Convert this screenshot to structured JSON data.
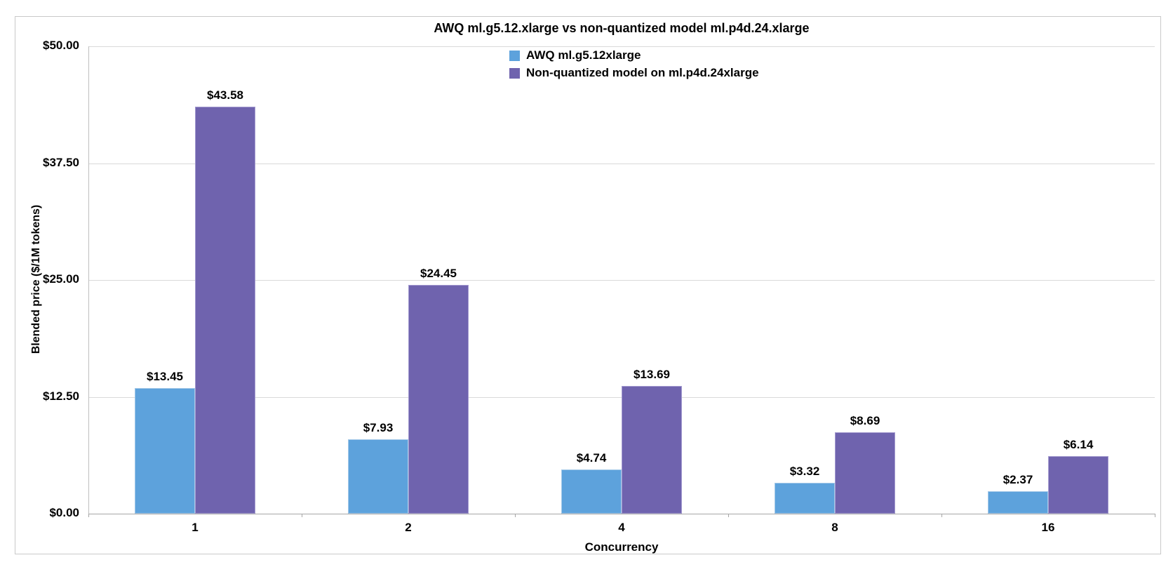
{
  "chart_data": {
    "type": "bar",
    "title": "AWQ ml.g5.12.xlarge vs non-quantized model ml.p4d.24.xlarge",
    "xlabel": "Concurrency",
    "ylabel": "Blended price ($/1M tokens)",
    "categories": [
      "1",
      "2",
      "4",
      "8",
      "16"
    ],
    "series": [
      {
        "name": "AWQ ml.g5.12xlarge",
        "color": "#5da2dc",
        "border_color": "#a4c9e8",
        "values": [
          13.45,
          7.93,
          4.74,
          3.32,
          2.37
        ],
        "labels": [
          "$13.45",
          "$7.93",
          "$4.74",
          "$3.32",
          "$2.37"
        ]
      },
      {
        "name": "Non-quantized model on ml.p4d.24xlarge",
        "color": "#6f63ae",
        "border_color": "#a49bd0",
        "values": [
          43.58,
          24.45,
          13.69,
          8.69,
          6.14
        ],
        "labels": [
          "$43.58",
          "$24.45",
          "$13.69",
          "$8.69",
          "$6.14"
        ]
      }
    ],
    "ylim": [
      0,
      50
    ],
    "yticks": [
      {
        "value": 50,
        "label": "$50.00"
      },
      {
        "value": 37.5,
        "label": "$37.50"
      },
      {
        "value": 25,
        "label": "$25.00"
      },
      {
        "value": 12.5,
        "label": "$12.50"
      },
      {
        "value": 0,
        "label": "$0.00"
      }
    ],
    "grid": true,
    "legend_position": "top-center",
    "colors": {
      "grid": "#d9d9d9",
      "axis": "#a6a6a6",
      "plot_border": "#bfbfbf",
      "chart_border": "#c9c9c9",
      "text": "#000000"
    }
  }
}
